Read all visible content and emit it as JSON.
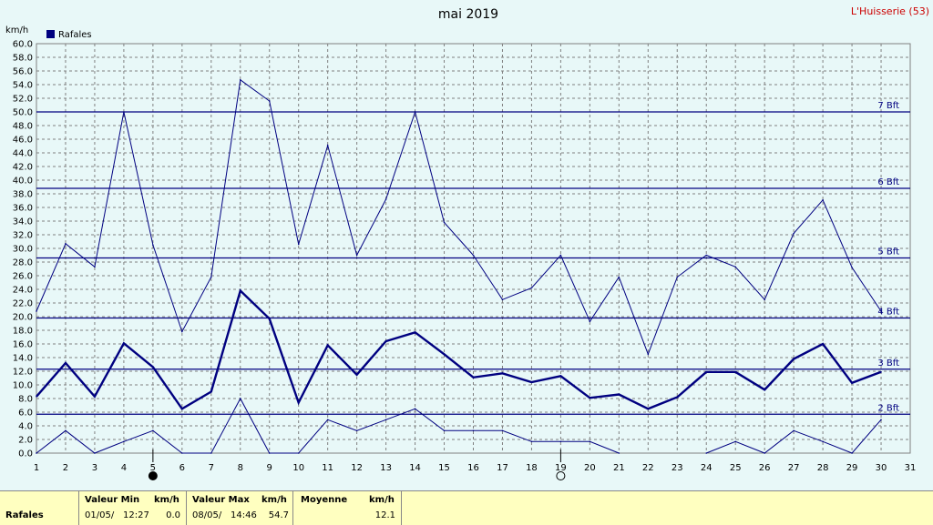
{
  "chart_data": {
    "type": "line",
    "title": "mai 2019",
    "location": "L'Huisserie (53)",
    "ylabel": "km/h",
    "ylim": [
      0,
      60
    ],
    "yticks": [
      "0.0",
      "2.0",
      "4.0",
      "6.0",
      "8.0",
      "10.0",
      "12.0",
      "14.0",
      "16.0",
      "18.0",
      "20.0",
      "22.0",
      "24.0",
      "26.0",
      "28.0",
      "30.0",
      "32.0",
      "34.0",
      "36.0",
      "38.0",
      "40.0",
      "42.0",
      "44.0",
      "46.0",
      "48.0",
      "50.0",
      "52.0",
      "54.0",
      "56.0",
      "58.0",
      "60.0"
    ],
    "xlim": [
      1,
      31
    ],
    "xticks": [
      "1",
      "2",
      "3",
      "4",
      "5",
      "6",
      "7",
      "8",
      "9",
      "10",
      "11",
      "12",
      "13",
      "14",
      "15",
      "16",
      "17",
      "18",
      "19",
      "20",
      "21",
      "22",
      "23",
      "24",
      "25",
      "26",
      "27",
      "28",
      "29",
      "30",
      "31"
    ],
    "legend": [
      {
        "name": "Rafales",
        "color": "#000080"
      }
    ],
    "grid": true,
    "beaufort_lines": [
      {
        "label": "2 Bft",
        "value": 5.7
      },
      {
        "label": "3 Bft",
        "value": 12.3
      },
      {
        "label": "4 Bft",
        "value": 19.8
      },
      {
        "label": "5 Bft",
        "value": 28.6
      },
      {
        "label": "6 Bft",
        "value": 38.8
      },
      {
        "label": "7 Bft",
        "value": 50.0
      }
    ],
    "series": [
      {
        "name": "Rafales max",
        "color": "#000080",
        "x": [
          1,
          2,
          3,
          4,
          5,
          6,
          7,
          8,
          9,
          10,
          11,
          12,
          13,
          14,
          15,
          16,
          17,
          18,
          19,
          20,
          21,
          22,
          23,
          24,
          25,
          26,
          27,
          28,
          29,
          30
        ],
        "values": [
          20.8,
          30.7,
          27.3,
          50.0,
          30.5,
          17.8,
          25.8,
          54.7,
          51.6,
          30.6,
          45.1,
          29.0,
          37.2,
          50.0,
          33.8,
          29.0,
          22.5,
          24.2,
          29.0,
          19.3,
          25.8,
          14.5,
          25.8,
          29.0,
          27.3,
          22.5,
          32.2,
          37.1,
          27.2,
          20.8
        ]
      },
      {
        "name": "Rafales moy",
        "color": "#000080",
        "bold": true,
        "x": [
          1,
          2,
          3,
          4,
          5,
          6,
          7,
          8,
          9,
          10,
          11,
          12,
          13,
          14,
          15,
          16,
          17,
          18,
          19,
          20,
          21,
          22,
          23,
          24,
          25,
          26,
          27,
          28,
          29,
          30
        ],
        "values": [
          8.3,
          13.2,
          8.3,
          16.1,
          12.6,
          6.5,
          9.0,
          23.8,
          19.7,
          7.4,
          15.8,
          11.5,
          16.4,
          17.7,
          14.5,
          11.1,
          11.7,
          10.4,
          11.3,
          8.1,
          8.6,
          6.5,
          8.2,
          11.9,
          11.9,
          9.3,
          13.8,
          16.0,
          10.3,
          11.9
        ]
      },
      {
        "name": "Rafales min",
        "color": "#000080",
        "x": [
          1,
          2,
          3,
          4,
          5,
          6,
          7,
          8,
          9,
          10,
          11,
          12,
          13,
          14,
          15,
          16,
          17,
          18,
          19,
          20,
          21,
          22,
          23,
          24,
          25,
          26,
          27,
          28,
          29,
          30
        ],
        "values": [
          0.0,
          3.3,
          0.0,
          1.7,
          3.3,
          0.0,
          0.0,
          8.0,
          0.0,
          0.0,
          4.9,
          3.3,
          4.9,
          6.5,
          3.3,
          3.3,
          3.3,
          1.7,
          1.7,
          1.7,
          0.0,
          null,
          null,
          0.0,
          1.7,
          0.0,
          3.3,
          1.7,
          0.0,
          4.9
        ]
      }
    ],
    "moon_phases": [
      {
        "day": 5,
        "phase": "new"
      },
      {
        "day": 19,
        "phase": "full"
      }
    ]
  },
  "footer": {
    "series_label": "Rafales",
    "min_header": "Valeur Min",
    "min_unit": "km/h",
    "min_date": "01/05/",
    "min_time": "12:27",
    "min_value": "0.0",
    "max_header": "Valeur Max",
    "max_unit": "km/h",
    "max_date": "08/05/",
    "max_time": "14:46",
    "max_value": "54.7",
    "avg_header": "Moyenne",
    "avg_unit": "km/h",
    "avg_value": "12.1"
  },
  "colors": {
    "background": "#E8F8F8",
    "series": "#000080",
    "grid": "#808080",
    "footer": "#FFFFC0",
    "location": "#CC0000"
  }
}
